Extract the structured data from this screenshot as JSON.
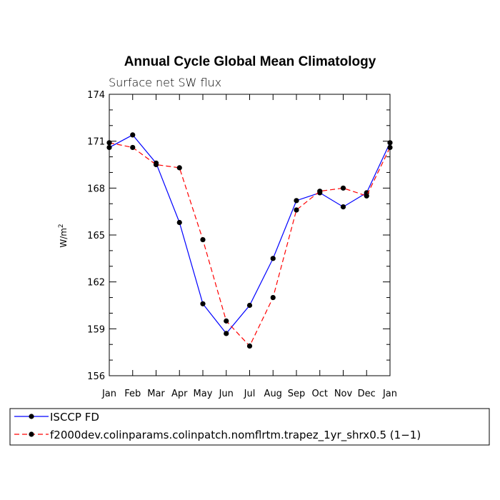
{
  "chart_data": {
    "type": "line",
    "title": "Annual Cycle Global Mean Climatology",
    "subtitle": "Surface net SW flux",
    "ylabel_base": "W/m",
    "ylabel_sup": "2",
    "categories": [
      "Jan",
      "Feb",
      "Mar",
      "Apr",
      "May",
      "Jun",
      "Jul",
      "Aug",
      "Sep",
      "Oct",
      "Nov",
      "Dec",
      "Jan"
    ],
    "ylim": [
      156,
      174
    ],
    "yticks": [
      156,
      159,
      162,
      165,
      168,
      171,
      174
    ],
    "ytick_labels": [
      "156",
      "159",
      "162",
      "165",
      "168",
      "171",
      "174"
    ],
    "series": [
      {
        "name": "ISCCP FD",
        "color": "#0000ff",
        "dash": "solid",
        "values": [
          170.6,
          171.4,
          169.6,
          165.8,
          160.6,
          158.7,
          160.5,
          163.5,
          167.2,
          167.7,
          166.8,
          167.7,
          170.9
        ]
      },
      {
        "name": "f2000dev.colinparams.colinpatch.nomflrtm.trapez_1yr_shrx0.5 (1−1)",
        "color": "#ff0000",
        "dash": "dashed",
        "values": [
          170.9,
          170.6,
          169.5,
          169.3,
          164.7,
          159.5,
          157.9,
          161.0,
          166.6,
          167.8,
          168.0,
          167.5,
          170.6
        ]
      }
    ]
  }
}
